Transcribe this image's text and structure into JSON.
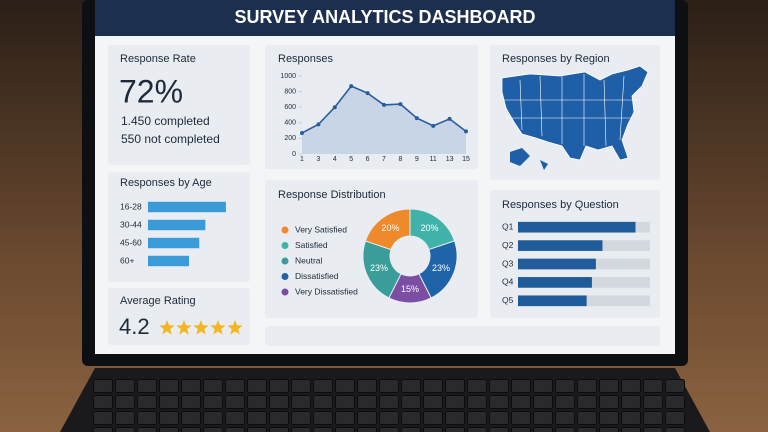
{
  "header": {
    "title": "SURVEY ANALYTICS DASHBOARD"
  },
  "response_rate": {
    "title": "Response Rate",
    "value": "72%",
    "completed": "1.450 completed",
    "not_completed": "550 not completed"
  },
  "responses": {
    "type": "line",
    "title": "Responses",
    "categories": [
      "1",
      "3",
      "4",
      "5",
      "6",
      "7",
      "8",
      "9",
      "11",
      "13",
      "15"
    ],
    "values": [
      270,
      380,
      600,
      870,
      780,
      630,
      640,
      460,
      360,
      450,
      290
    ],
    "color": "#2a5d9f",
    "ylim": [
      0,
      1000
    ],
    "yticks": [
      0,
      200,
      400,
      600,
      800,
      1000
    ]
  },
  "region": {
    "title": "Responses by Region"
  },
  "age": {
    "type": "bar",
    "title": "Responses by Age",
    "categories": [
      "16-28",
      "30-44",
      "45-60",
      "60+"
    ],
    "values": [
      38,
      28,
      25,
      20
    ],
    "color": "#3b9bd8",
    "xlim": [
      0,
      40
    ]
  },
  "rating": {
    "title": "Average Rating",
    "value": "4.2"
  },
  "distribution": {
    "type": "donut",
    "title": "Response Distribution",
    "categories": [
      "Very Satisfied",
      "Satisfied",
      "Neutral",
      "Dissatisfied",
      "Very Dissatisfied"
    ],
    "values": [
      20,
      20,
      23,
      23,
      15
    ],
    "value_labels": [
      "20%",
      "20%",
      "23%",
      "23%",
      "15%"
    ],
    "colors": [
      "#ef8a2c",
      "#3fb3aa",
      "#3a9d9a",
      "#1f63a8",
      "#7b4ea3"
    ]
  },
  "questions": {
    "type": "bar",
    "title": "Responses by Question",
    "categories": [
      "Q1",
      "Q2",
      "Q3",
      "Q4",
      "Q5"
    ],
    "values": [
      89,
      64,
      59,
      56,
      52
    ],
    "color": "#1f5c99",
    "xlim": [
      0,
      100
    ]
  }
}
